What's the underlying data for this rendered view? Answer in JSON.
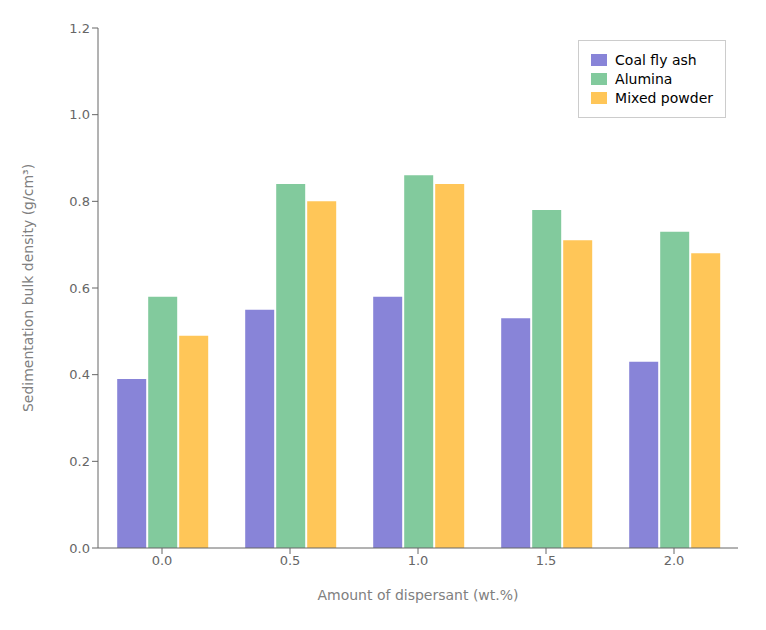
{
  "chart_data": {
    "type": "bar",
    "categories": [
      "0.0",
      "0.5",
      "1.0",
      "1.5",
      "2.0"
    ],
    "series": [
      {
        "name": "Coal fly ash",
        "color": "#8884d8",
        "values": [
          0.39,
          0.55,
          0.58,
          0.53,
          0.43
        ]
      },
      {
        "name": "Alumina",
        "color": "#82ca9d",
        "values": [
          0.58,
          0.84,
          0.86,
          0.78,
          0.73
        ]
      },
      {
        "name": "Mixed powder",
        "color": "#ffc658",
        "values": [
          0.49,
          0.8,
          0.84,
          0.71,
          0.68
        ]
      }
    ],
    "xlabel": "Amount of dispersant (wt.%)",
    "ylabel": "Sedimentation bulk density (g/cm³)",
    "ylim": [
      0.0,
      1.2
    ],
    "yticks": [
      {
        "value": 0,
        "label": "0.0"
      },
      0.2,
      0.4,
      0.6,
      0.8,
      {
        "value": 1,
        "label": "1.0"
      },
      1.2
    ],
    "grid": false,
    "legend": "upper right"
  }
}
